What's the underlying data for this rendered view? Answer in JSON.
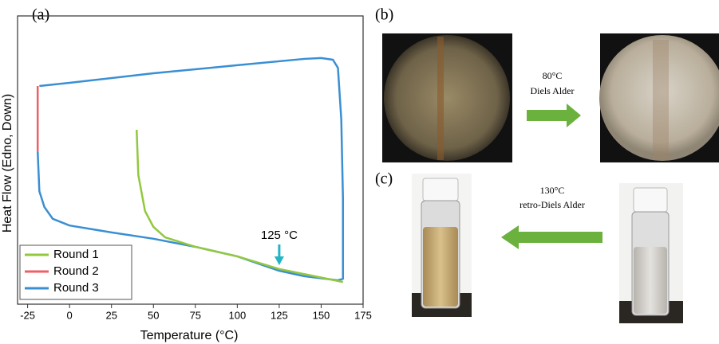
{
  "chart_data": {
    "type": "line",
    "panel_label": "(a)",
    "x_label": "Temperature (°C)",
    "y_label": "Heat Flow (Edno, Down)",
    "xlim": [
      -31,
      175
    ],
    "xticks": [
      -25,
      0,
      25,
      50,
      75,
      100,
      125,
      150,
      175
    ],
    "ylim": [
      0,
      100
    ],
    "legend": "lower left",
    "annotation": {
      "text": "125 °C",
      "x": 125
    },
    "series": [
      {
        "name": "Round 1",
        "color": "#92c83e",
        "x": [
          40,
          41,
          45,
          50,
          57,
          75,
          100,
          125,
          163
        ],
        "values": [
          60.5,
          44.8,
          32.3,
          26.8,
          23.2,
          19.9,
          16.6,
          12.2,
          7.7
        ]
      },
      {
        "name": "Round 2",
        "color": "#ee5f66",
        "x": [
          -19,
          -19
        ],
        "values": [
          53.0,
          75.7
        ]
      },
      {
        "name": "Round 3",
        "color": "#3a8fd3",
        "x": [
          -18,
          0,
          50,
          100,
          140,
          150,
          157,
          160,
          162,
          163,
          163,
          160,
          140,
          125,
          100,
          75,
          50,
          25,
          0,
          -10,
          -15,
          -18,
          -19
        ],
        "values": [
          75.7,
          76.8,
          80.1,
          82.9,
          85.1,
          85.4,
          84.8,
          82.0,
          64.1,
          36.5,
          8.8,
          8.3,
          9.7,
          11.6,
          16.6,
          19.9,
          22.7,
          24.9,
          27.3,
          29.6,
          33.7,
          39.2,
          53.0
        ]
      }
    ]
  },
  "panels": {
    "b": {
      "label": "(b)",
      "condition": "80°C",
      "reaction": "Diels Alder"
    },
    "c": {
      "label": "(c)",
      "condition": "130°C",
      "reaction": "retro-Diels Alder"
    }
  }
}
